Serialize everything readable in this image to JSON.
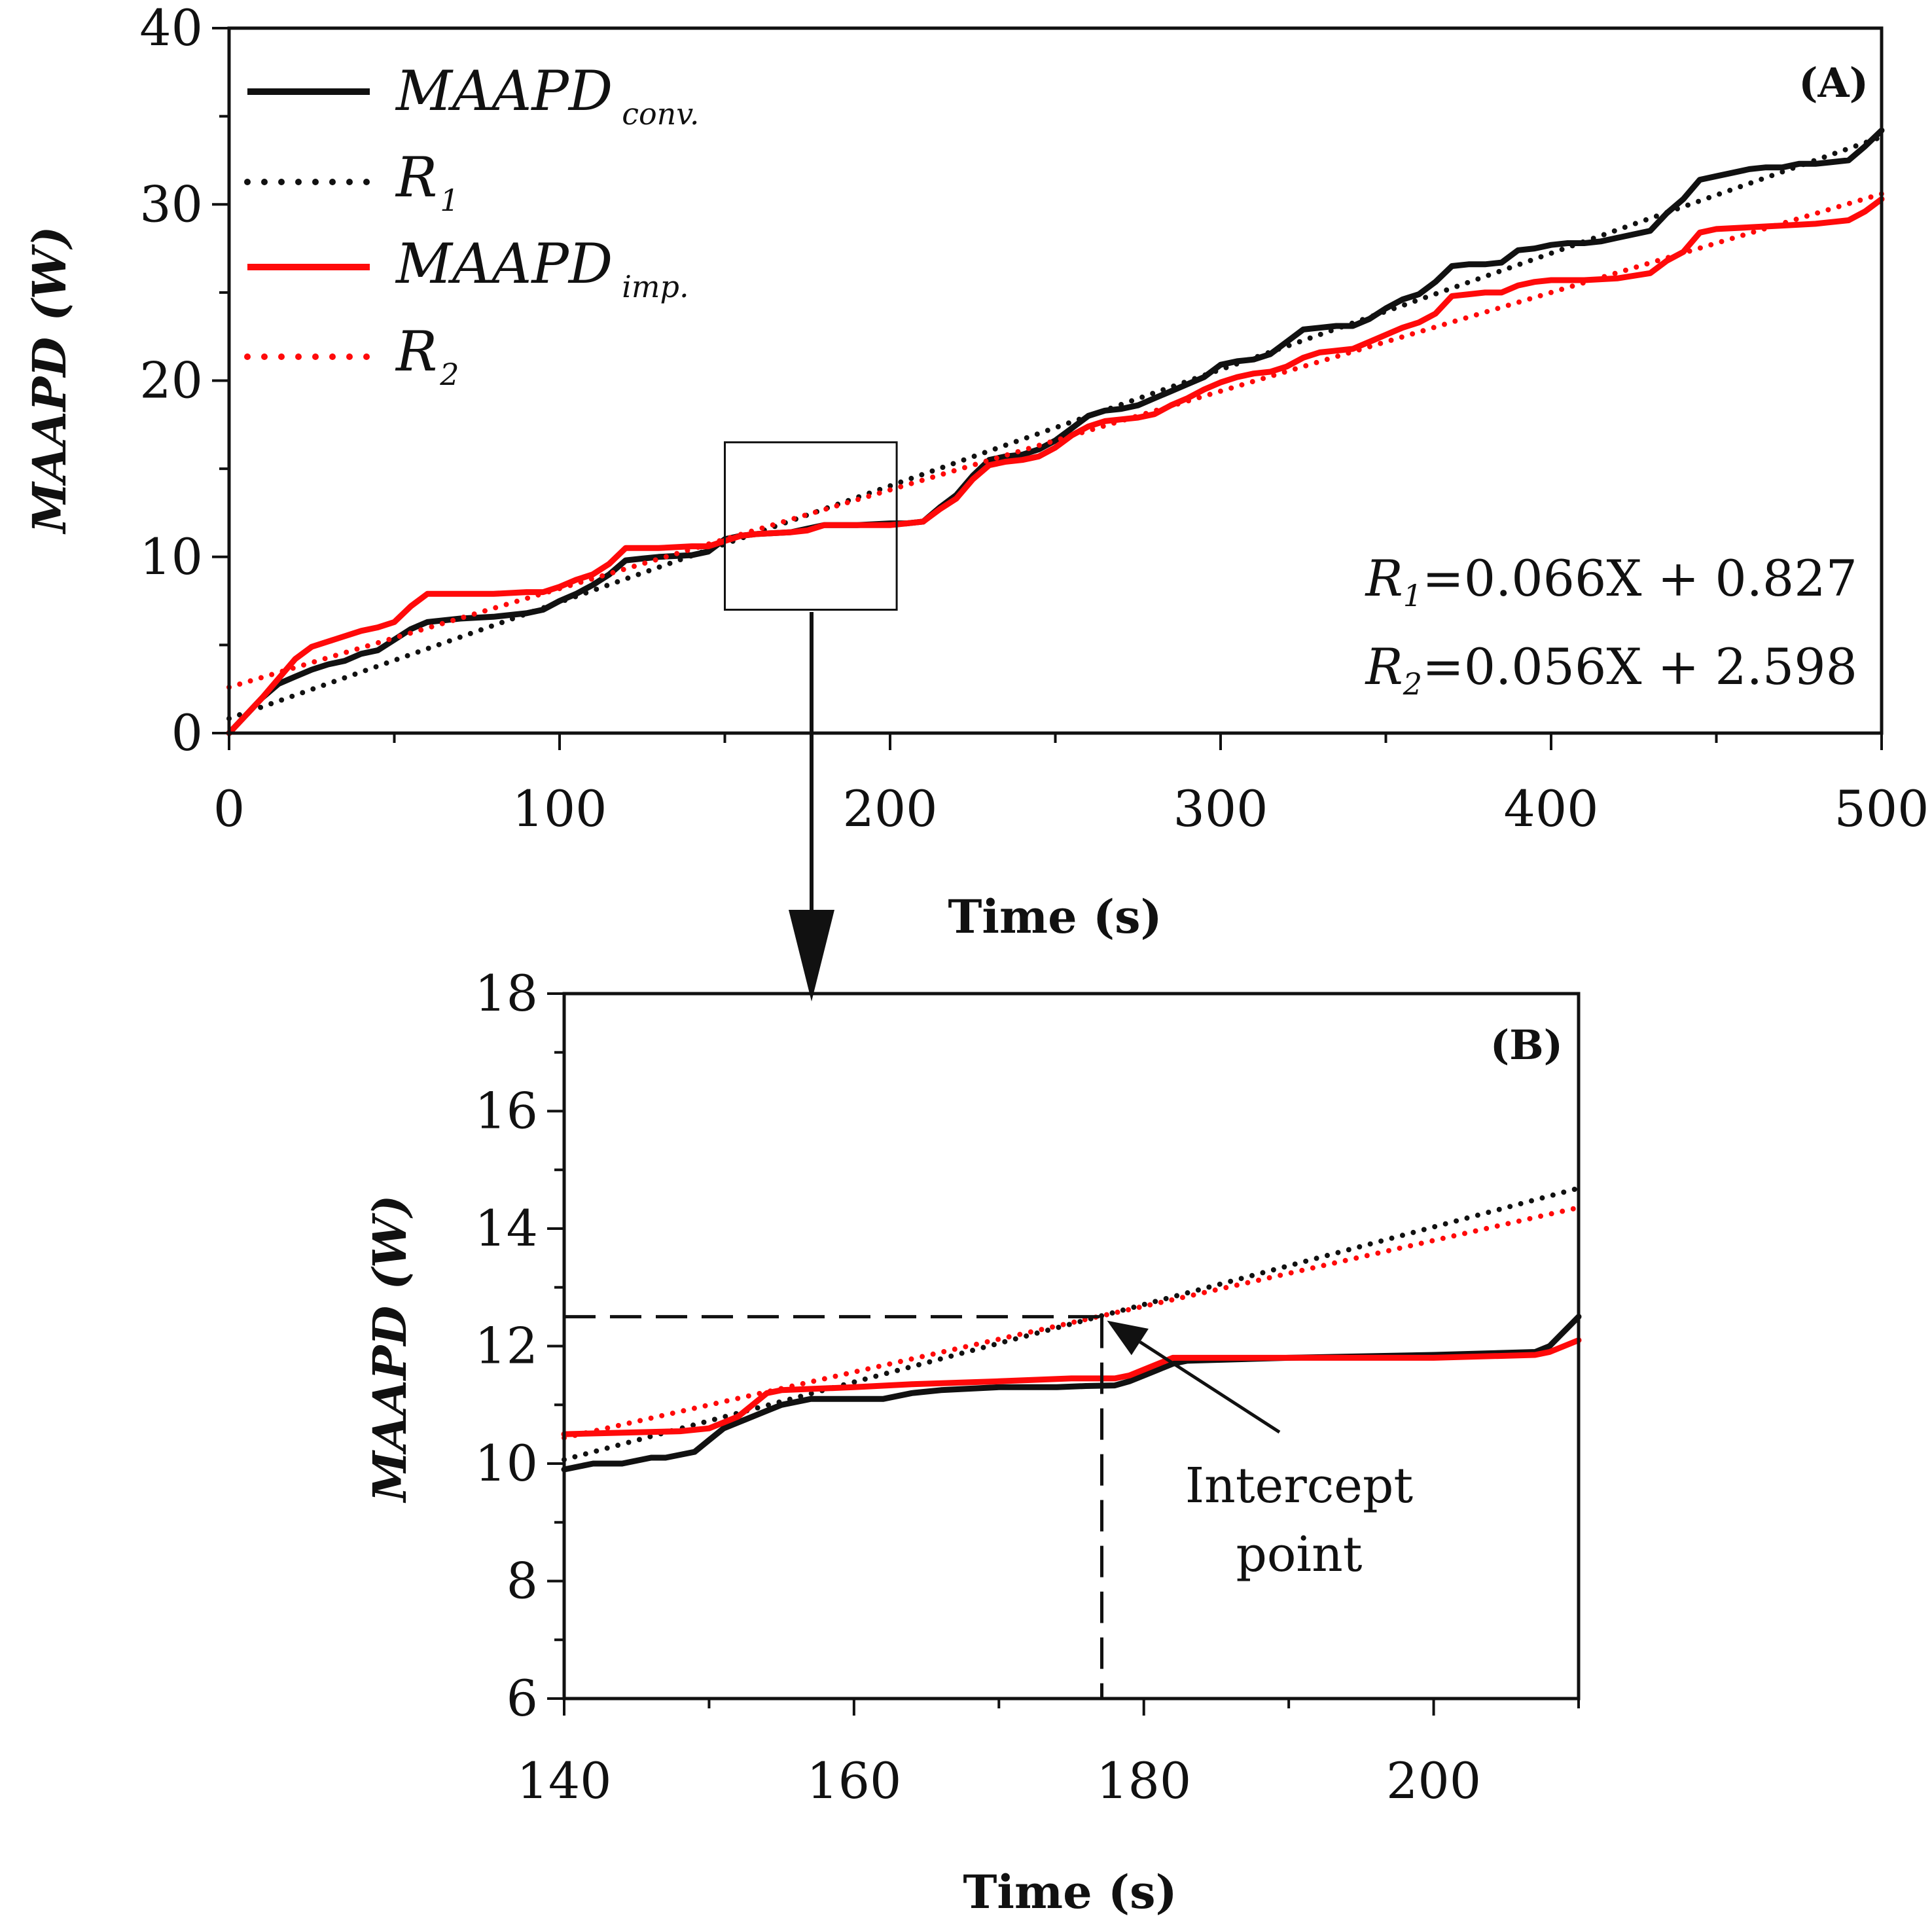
{
  "colors": {
    "conv": "#111111",
    "imp": "#ff0a0a",
    "axis": "#111111",
    "background": "#ffffff"
  },
  "chart_data": [
    {
      "type": "line",
      "panel": "(A)",
      "xlabel": "Time (s)",
      "ylabel": "MAAPD (W)",
      "xlim": [
        0,
        500
      ],
      "ylim": [
        0,
        40
      ],
      "xticks": [
        0,
        100,
        200,
        300,
        400,
        500
      ],
      "yticks": [
        0,
        10,
        20,
        30,
        40
      ],
      "grid": false,
      "legend_position": "top-left",
      "legend": [
        {
          "main": "MAAPD",
          "sub": "conv.",
          "style": "solid",
          "color": "#111111"
        },
        {
          "main": "R",
          "sub": "1",
          "style": "dotted",
          "color": "#111111"
        },
        {
          "main": "MAAPD",
          "sub": "imp.",
          "style": "solid",
          "color": "#ff0a0a"
        },
        {
          "main": "R",
          "sub": "2",
          "style": "dotted",
          "color": "#ff0a0a"
        }
      ],
      "equations": [
        {
          "prefix": "R",
          "sub": "1",
          "rest": "=0.066X + 0.827"
        },
        {
          "prefix": "R",
          "sub": "2",
          "rest": "=0.056X + 2.598"
        }
      ],
      "zoom_box": {
        "x": [
          150,
          202
        ],
        "y": [
          7,
          16.5
        ]
      },
      "series": [
        {
          "name": "MAAPD conv.",
          "style": "solid",
          "color": "#111111",
          "x": [
            0,
            5,
            10,
            15,
            20,
            25,
            30,
            35,
            40,
            45,
            50,
            55,
            60,
            70,
            80,
            90,
            95,
            100,
            105,
            110,
            115,
            120,
            125,
            130,
            140,
            145,
            150,
            155,
            160,
            170,
            175,
            180,
            190,
            200,
            205,
            210,
            215,
            220,
            225,
            230,
            235,
            240,
            245,
            250,
            255,
            260,
            265,
            270,
            275,
            280,
            285,
            290,
            295,
            300,
            305,
            310,
            315,
            320,
            325,
            330,
            335,
            340,
            345,
            350,
            355,
            360,
            365,
            370,
            375,
            380,
            385,
            390,
            395,
            400,
            405,
            410,
            415,
            420,
            425,
            430,
            435,
            440,
            445,
            450,
            455,
            460,
            465,
            470,
            475,
            480,
            485,
            490,
            495,
            500
          ],
          "y": [
            0,
            1,
            2,
            2.8,
            3.2,
            3.6,
            3.9,
            4.1,
            4.5,
            4.7,
            5.3,
            5.9,
            6.3,
            6.5,
            6.6,
            6.8,
            7.0,
            7.5,
            7.9,
            8.4,
            9.0,
            9.8,
            9.9,
            10.0,
            10.1,
            10.3,
            11.0,
            11.2,
            11.3,
            11.4,
            11.6,
            11.8,
            11.8,
            11.9,
            11.9,
            12.0,
            12.8,
            13.5,
            14.6,
            15.5,
            15.7,
            15.8,
            16.1,
            16.6,
            17.3,
            18.0,
            18.3,
            18.4,
            18.6,
            19.0,
            19.4,
            19.8,
            20.2,
            20.9,
            21.1,
            21.2,
            21.5,
            22.2,
            22.9,
            23.0,
            23.1,
            23.1,
            23.5,
            24.1,
            24.6,
            24.9,
            25.6,
            26.5,
            26.6,
            26.6,
            26.7,
            27.4,
            27.5,
            27.7,
            27.8,
            27.8,
            27.9,
            28.1,
            28.3,
            28.5,
            29.5,
            30.3,
            31.4,
            31.6,
            31.8,
            32.0,
            32.1,
            32.1,
            32.3,
            32.3,
            32.4,
            32.5,
            33.3,
            34.2
          ]
        },
        {
          "name": "R1",
          "style": "dotted",
          "color": "#111111",
          "x": [
            0,
            500
          ],
          "y": [
            0.827,
            33.827
          ]
        },
        {
          "name": "MAAPD imp.",
          "style": "solid",
          "color": "#ff0a0a",
          "x": [
            0,
            10,
            20,
            25,
            30,
            35,
            40,
            45,
            50,
            55,
            60,
            70,
            80,
            90,
            95,
            100,
            105,
            110,
            115,
            120,
            125,
            130,
            140,
            145,
            150,
            155,
            160,
            170,
            175,
            180,
            190,
            200,
            205,
            210,
            215,
            220,
            225,
            230,
            235,
            240,
            245,
            250,
            255,
            260,
            265,
            270,
            275,
            280,
            285,
            290,
            295,
            300,
            305,
            310,
            315,
            320,
            325,
            330,
            335,
            340,
            345,
            350,
            355,
            360,
            365,
            370,
            375,
            380,
            385,
            390,
            395,
            400,
            410,
            420,
            430,
            435,
            440,
            445,
            450,
            460,
            470,
            480,
            490,
            495,
            500
          ],
          "y": [
            0,
            2,
            4.2,
            4.9,
            5.2,
            5.5,
            5.8,
            6.0,
            6.3,
            7.2,
            7.9,
            7.9,
            7.9,
            8.0,
            8.0,
            8.3,
            8.7,
            9.0,
            9.6,
            10.5,
            10.5,
            10.5,
            10.6,
            10.6,
            10.9,
            11.2,
            11.3,
            11.4,
            11.5,
            11.8,
            11.8,
            11.8,
            11.9,
            12.0,
            12.7,
            13.3,
            14.4,
            15.2,
            15.4,
            15.5,
            15.7,
            16.2,
            16.9,
            17.4,
            17.7,
            17.8,
            17.9,
            18.1,
            18.6,
            19.0,
            19.5,
            19.9,
            20.2,
            20.4,
            20.5,
            20.8,
            21.3,
            21.6,
            21.7,
            21.8,
            22.2,
            22.6,
            23.0,
            23.3,
            23.8,
            24.8,
            24.9,
            25.0,
            25.0,
            25.4,
            25.6,
            25.7,
            25.7,
            25.8,
            26.1,
            26.8,
            27.3,
            28.4,
            28.6,
            28.7,
            28.8,
            28.9,
            29.1,
            29.6,
            30.3
          ]
        },
        {
          "name": "R2",
          "style": "dotted",
          "color": "#ff0a0a",
          "x": [
            0,
            500
          ],
          "y": [
            2.598,
            30.598
          ]
        }
      ]
    },
    {
      "type": "line",
      "panel": "(B)",
      "xlabel": "Time (s)",
      "ylabel": "MAAPD (W)",
      "xlim": [
        140,
        210
      ],
      "ylim": [
        6,
        18
      ],
      "xticks": [
        140,
        160,
        180,
        200
      ],
      "yticks": [
        6,
        8,
        10,
        12,
        14,
        16,
        18
      ],
      "grid": false,
      "annotation": {
        "lines": [
          "Intercept",
          "point"
        ],
        "point": [
          177.1,
          12.5
        ]
      },
      "series": [
        {
          "name": "MAAPD conv.",
          "style": "solid",
          "color": "#111111",
          "x": [
            140,
            142,
            144,
            146,
            147,
            149,
            150,
            151,
            152,
            153,
            154,
            155,
            156,
            157,
            158,
            162,
            164,
            166,
            170,
            174,
            176,
            178,
            179,
            180,
            181,
            182,
            183,
            190,
            200,
            207,
            208,
            210
          ],
          "y": [
            9.9,
            10.0,
            10.0,
            10.1,
            10.1,
            10.2,
            10.4,
            10.6,
            10.7,
            10.8,
            10.9,
            11.0,
            11.05,
            11.1,
            11.1,
            11.1,
            11.2,
            11.25,
            11.3,
            11.3,
            11.32,
            11.33,
            11.4,
            11.5,
            11.6,
            11.7,
            11.75,
            11.8,
            11.85,
            11.9,
            12.0,
            12.5
          ]
        },
        {
          "name": "R1",
          "style": "dotted",
          "color": "#111111",
          "x": [
            140,
            210
          ],
          "y": [
            10.067,
            14.687
          ]
        },
        {
          "name": "MAAPD imp.",
          "style": "solid",
          "color": "#ff0a0a",
          "x": [
            140,
            148,
            150,
            151,
            152,
            153,
            154,
            155,
            160,
            164,
            170,
            175,
            178,
            179,
            180,
            181,
            182,
            183,
            190,
            200,
            207,
            208,
            210
          ],
          "y": [
            10.5,
            10.55,
            10.6,
            10.7,
            10.8,
            11.0,
            11.2,
            11.25,
            11.3,
            11.35,
            11.4,
            11.45,
            11.45,
            11.5,
            11.6,
            11.7,
            11.8,
            11.8,
            11.8,
            11.8,
            11.85,
            11.9,
            12.1
          ]
        },
        {
          "name": "R2",
          "style": "dotted",
          "color": "#ff0a0a",
          "x": [
            140,
            210
          ],
          "y": [
            10.438,
            14.358
          ]
        }
      ]
    }
  ]
}
